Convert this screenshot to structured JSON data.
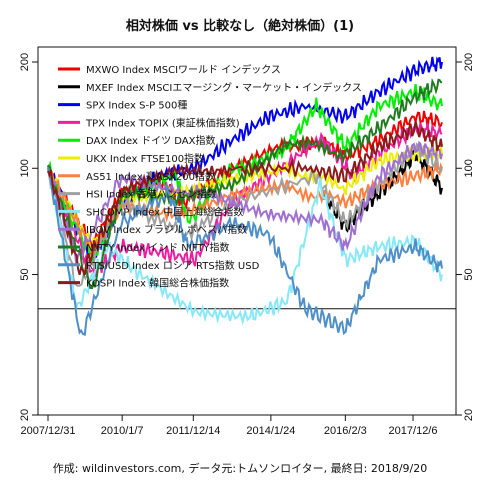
{
  "chart_data": {
    "type": "line",
    "title": "相対株価 vs 比較なし（絶対株価）(1)",
    "footer": "作成: wildinvestors.com, データ元:トムソンロイター, 最終日: 2018/9/20",
    "y_scale": "log",
    "ylim": [
      20,
      200
    ],
    "yticks": [
      "20",
      "50",
      "100",
      "200"
    ],
    "xticks": [
      "2007/12/31",
      "2010/1/7",
      "2011/12/14",
      "2014/1/24",
      "2016/2/3",
      "2017/12/6"
    ],
    "x_range": [
      "2007-12-31",
      "2018-09-20"
    ],
    "reference_line": 40,
    "legend_position": "top-left",
    "series": [
      {
        "name": "MXWO Index MSCIワールド インデックス",
        "color": "#ee0000",
        "values": [
          [
            2008.0,
            100
          ],
          [
            2009.2,
            60
          ],
          [
            2010.0,
            85
          ],
          [
            2011.0,
            92
          ],
          [
            2011.7,
            80
          ],
          [
            2013.0,
            100
          ],
          [
            2014.5,
            115
          ],
          [
            2015.5,
            118
          ],
          [
            2016.1,
            108
          ],
          [
            2017.0,
            120
          ],
          [
            2018.0,
            140
          ],
          [
            2018.72,
            135
          ]
        ]
      },
      {
        "name": "MXEF Index MSCIエマージング・マーケット・インデックス",
        "color": "#000000",
        "values": [
          [
            2015.5,
            85
          ],
          [
            2016.1,
            68
          ],
          [
            2016.6,
            78
          ],
          [
            2017.0,
            85
          ],
          [
            2017.5,
            95
          ],
          [
            2018.0,
            110
          ],
          [
            2018.3,
            100
          ],
          [
            2018.72,
            88
          ]
        ]
      },
      {
        "name": "SPX Index S-P 500種",
        "color": "#0000ee",
        "values": [
          [
            2008.0,
            100
          ],
          [
            2009.2,
            55
          ],
          [
            2010.0,
            80
          ],
          [
            2011.0,
            95
          ],
          [
            2012.0,
            100
          ],
          [
            2013.0,
            120
          ],
          [
            2014.0,
            140
          ],
          [
            2015.0,
            150
          ],
          [
            2016.1,
            140
          ],
          [
            2017.0,
            165
          ],
          [
            2018.0,
            190
          ],
          [
            2018.72,
            200
          ]
        ]
      },
      {
        "name": "TPX Index TOPIX (東証株価指数)",
        "color": "#ee1ea0",
        "values": [
          [
            2008.0,
            100
          ],
          [
            2009.2,
            50
          ],
          [
            2010.0,
            60
          ],
          [
            2011.0,
            58
          ],
          [
            2012.0,
            55
          ],
          [
            2013.0,
            80
          ],
          [
            2014.0,
            95
          ],
          [
            2015.5,
            120
          ],
          [
            2016.3,
            95
          ],
          [
            2017.0,
            110
          ],
          [
            2018.0,
            130
          ],
          [
            2018.72,
            125
          ]
        ]
      },
      {
        "name": "DAX Index ドイツ DAX指数",
        "color": "#00ee00",
        "values": [
          [
            2008.0,
            100
          ],
          [
            2009.2,
            55
          ],
          [
            2010.0,
            80
          ],
          [
            2011.5,
            95
          ],
          [
            2011.8,
            70
          ],
          [
            2013.0,
            100
          ],
          [
            2014.5,
            115
          ],
          [
            2015.3,
            150
          ],
          [
            2016.1,
            115
          ],
          [
            2017.0,
            150
          ],
          [
            2018.0,
            165
          ],
          [
            2018.72,
            150
          ]
        ]
      },
      {
        "name": "UKX Index FTSE100指数",
        "color": "#eeee00",
        "values": [
          [
            2008.0,
            100
          ],
          [
            2009.2,
            60
          ],
          [
            2010.0,
            80
          ],
          [
            2011.5,
            85
          ],
          [
            2013.0,
            95
          ],
          [
            2014.5,
            100
          ],
          [
            2016.1,
            88
          ],
          [
            2017.0,
            105
          ],
          [
            2018.0,
            110
          ],
          [
            2018.72,
            110
          ]
        ]
      },
      {
        "name": "AS51 Index 豪ASX200指数",
        "color": "#ff7f3f",
        "values": [
          [
            2008.0,
            100
          ],
          [
            2009.2,
            58
          ],
          [
            2010.0,
            78
          ],
          [
            2011.5,
            75
          ],
          [
            2013.0,
            85
          ],
          [
            2014.5,
            88
          ],
          [
            2016.1,
            80
          ],
          [
            2017.0,
            90
          ],
          [
            2018.0,
            95
          ],
          [
            2018.72,
            100
          ]
        ]
      },
      {
        "name": "HSI Index 香港ハンセン指数",
        "color": "#a0a0a0",
        "values": [
          [
            2008.0,
            100
          ],
          [
            2008.8,
            45
          ],
          [
            2010.0,
            80
          ],
          [
            2011.8,
            65
          ],
          [
            2013.0,
            80
          ],
          [
            2015.3,
            95
          ],
          [
            2016.1,
            70
          ],
          [
            2017.0,
            90
          ],
          [
            2018.0,
            115
          ],
          [
            2018.72,
            100
          ]
        ]
      },
      {
        "name": "SHCOMP Index 中国上海総合指数",
        "color": "#88e8f8",
        "values": [
          [
            2008.0,
            100
          ],
          [
            2008.8,
            40
          ],
          [
            2009.6,
            60
          ],
          [
            2010.5,
            50
          ],
          [
            2012.0,
            40
          ],
          [
            2013.5,
            38
          ],
          [
            2014.5,
            42
          ],
          [
            2015.4,
            90
          ],
          [
            2016.1,
            55
          ],
          [
            2017.0,
            60
          ],
          [
            2018.0,
            62
          ],
          [
            2018.72,
            50
          ]
        ]
      },
      {
        "name": "IBOV Index ブラジル ボベスパ指数",
        "color": "#a070d0",
        "values": [
          [
            2008.0,
            100
          ],
          [
            2008.8,
            55
          ],
          [
            2010.0,
            95
          ],
          [
            2011.5,
            85
          ],
          [
            2012.5,
            85
          ],
          [
            2014.0,
            75
          ],
          [
            2015.5,
            70
          ],
          [
            2016.1,
            60
          ],
          [
            2017.0,
            95
          ],
          [
            2018.0,
            115
          ],
          [
            2018.72,
            110
          ]
        ]
      },
      {
        "name": "NIFTY Index インド NIFTY指数",
        "color": "#207a20",
        "values": [
          [
            2008.0,
            100
          ],
          [
            2009.2,
            45
          ],
          [
            2010.0,
            85
          ],
          [
            2011.5,
            80
          ],
          [
            2013.0,
            90
          ],
          [
            2014.5,
            120
          ],
          [
            2016.1,
            110
          ],
          [
            2017.0,
            130
          ],
          [
            2018.0,
            160
          ],
          [
            2018.72,
            175
          ]
        ]
      },
      {
        "name": "RTSIUSD Index ロシア RTS指数 USD",
        "color": "#4f8fc8",
        "values": [
          [
            2008.0,
            100
          ],
          [
            2008.9,
            33
          ],
          [
            2010.0,
            70
          ],
          [
            2011.3,
            85
          ],
          [
            2011.8,
            60
          ],
          [
            2013.0,
            70
          ],
          [
            2014.0,
            65
          ],
          [
            2015.0,
            40
          ],
          [
            2016.1,
            35
          ],
          [
            2017.0,
            55
          ],
          [
            2018.0,
            60
          ],
          [
            2018.72,
            52
          ]
        ]
      },
      {
        "name": "KOSPI Index 韓国総合株価指数",
        "color": "#8b1a1a",
        "values": [
          [
            2008.0,
            100
          ],
          [
            2008.9,
            50
          ],
          [
            2010.0,
            85
          ],
          [
            2011.5,
            100
          ],
          [
            2013.0,
            100
          ],
          [
            2015.0,
            100
          ],
          [
            2016.1,
            95
          ],
          [
            2017.0,
            115
          ],
          [
            2018.0,
            130
          ],
          [
            2018.72,
            115
          ]
        ]
      }
    ]
  }
}
